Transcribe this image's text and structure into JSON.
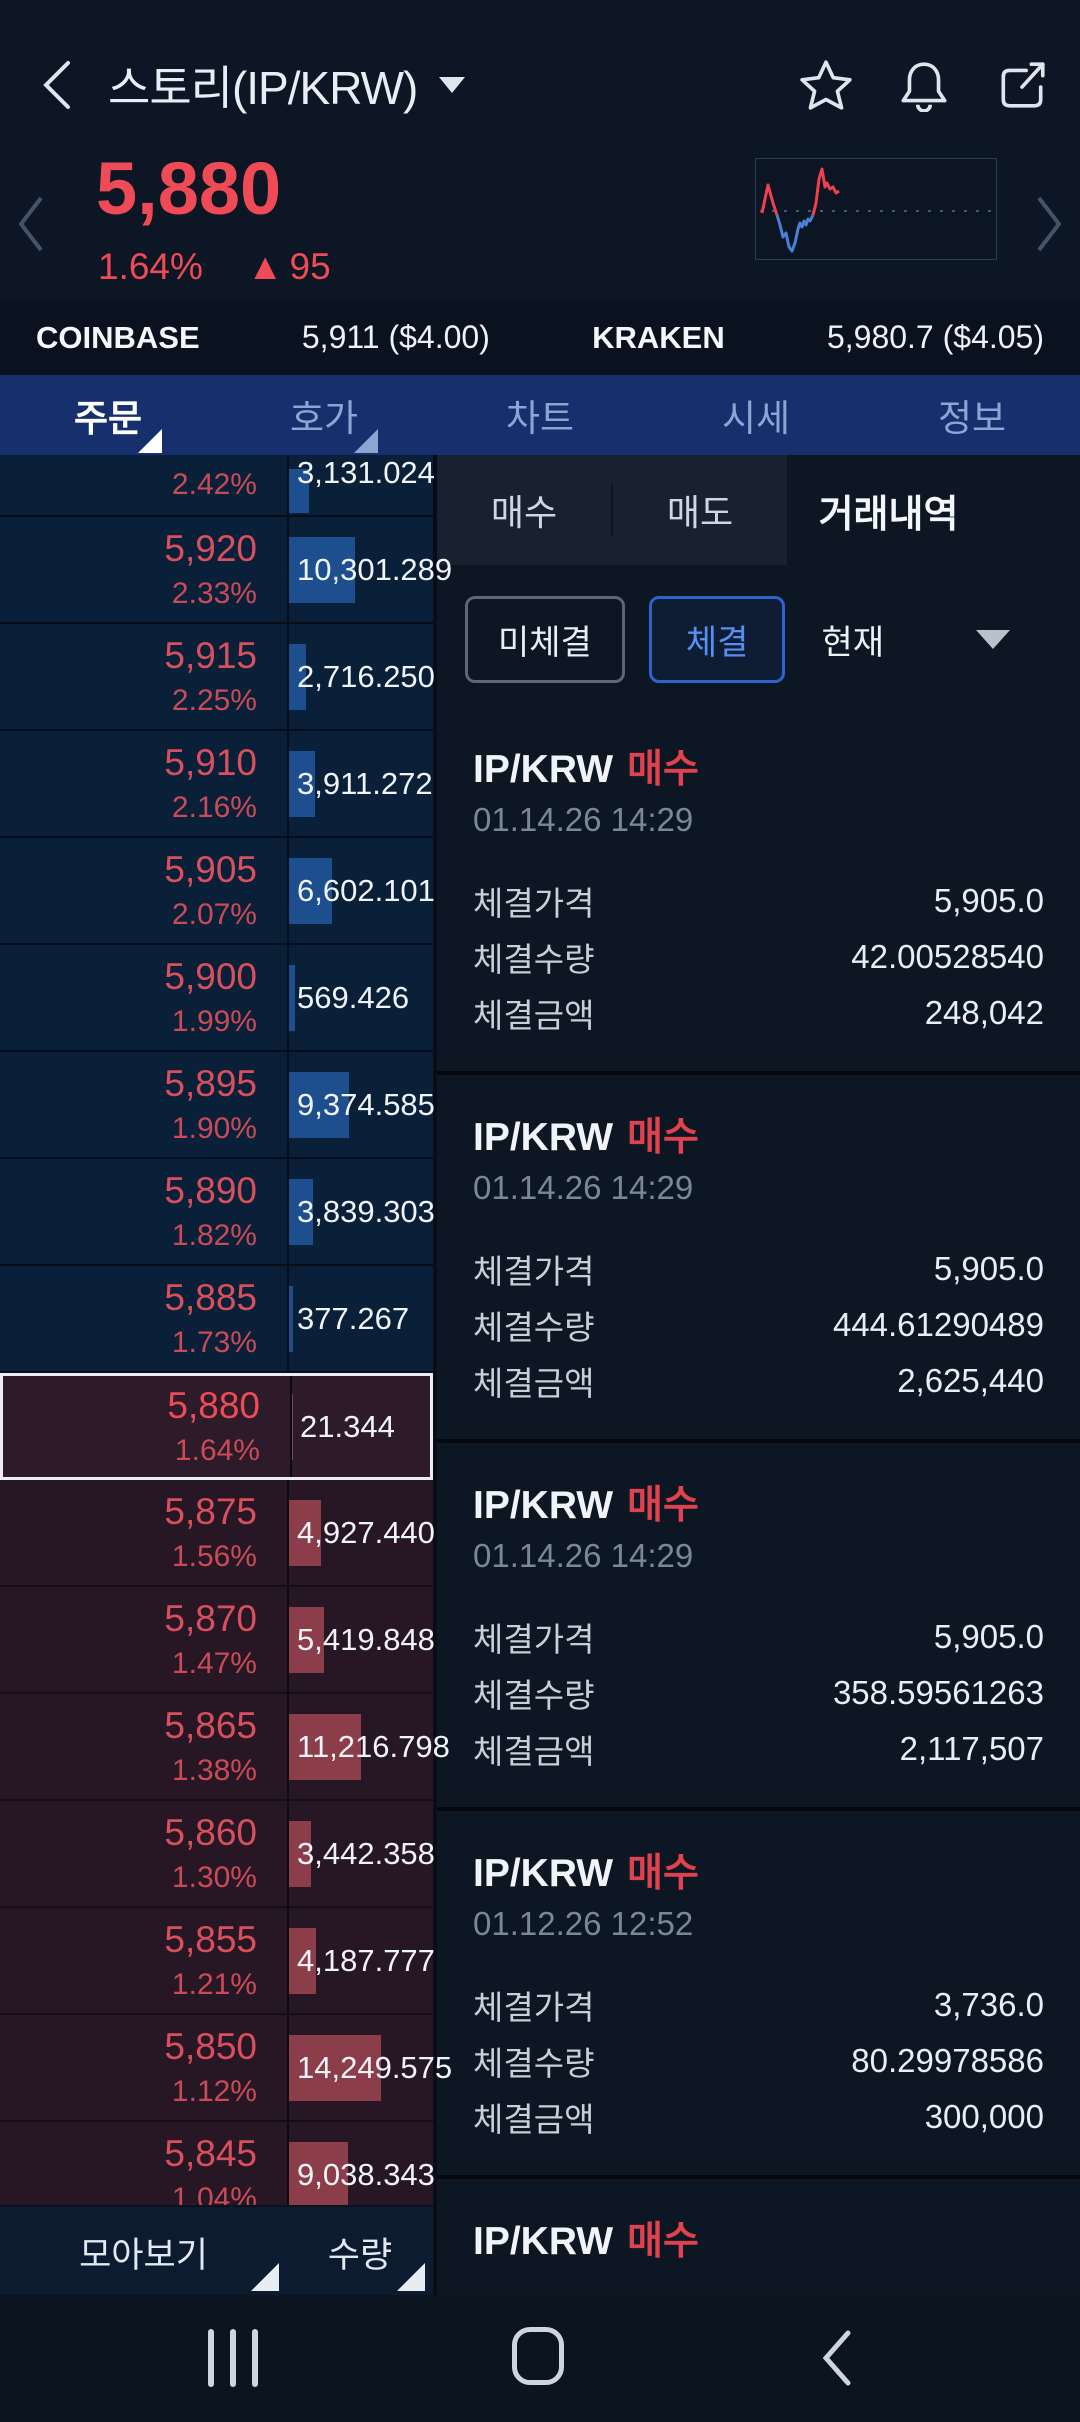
{
  "header": {
    "title": "스토리(IP/KRW)"
  },
  "price": {
    "value": "5,880",
    "change_pct": "1.64%",
    "change_dir": "▲",
    "change_abs": "95"
  },
  "ticker_compare": {
    "items": [
      {
        "exchange": "COINBASE",
        "price": "5,911 ($4.00)"
      },
      {
        "exchange": "KRAKEN",
        "price": "5,980.7 ($4.05)"
      }
    ]
  },
  "nav_tabs": {
    "items": [
      {
        "label": "주문"
      },
      {
        "label": "호가"
      },
      {
        "label": "차트"
      },
      {
        "label": "시세"
      },
      {
        "label": "정보"
      }
    ]
  },
  "orderbook": {
    "rows": [
      {
        "price": "",
        "pct": "2.42%",
        "volume": "3,131.024",
        "bar": 14,
        "side": "ask"
      },
      {
        "price": "5,920",
        "pct": "2.33%",
        "volume": "10,301.289",
        "bar": 46,
        "side": "ask"
      },
      {
        "price": "5,915",
        "pct": "2.25%",
        "volume": "2,716.250",
        "bar": 12,
        "side": "ask"
      },
      {
        "price": "5,910",
        "pct": "2.16%",
        "volume": "3,911.272",
        "bar": 18,
        "side": "ask"
      },
      {
        "price": "5,905",
        "pct": "2.07%",
        "volume": "6,602.101",
        "bar": 30,
        "side": "ask"
      },
      {
        "price": "5,900",
        "pct": "1.99%",
        "volume": "569.426",
        "bar": 4,
        "side": "ask"
      },
      {
        "price": "5,895",
        "pct": "1.90%",
        "volume": "9,374.585",
        "bar": 42,
        "side": "ask"
      },
      {
        "price": "5,890",
        "pct": "1.82%",
        "volume": "3,839.303",
        "bar": 17,
        "side": "ask"
      },
      {
        "price": "5,885",
        "pct": "1.73%",
        "volume": "377.267",
        "bar": 3,
        "side": "ask"
      },
      {
        "price": "5,880",
        "pct": "1.64%",
        "volume": "21.344",
        "bar": 1,
        "side": "bid",
        "selected": true
      },
      {
        "price": "5,875",
        "pct": "1.56%",
        "volume": "4,927.440",
        "bar": 22,
        "side": "bid"
      },
      {
        "price": "5,870",
        "pct": "1.47%",
        "volume": "5,419.848",
        "bar": 24,
        "side": "bid"
      },
      {
        "price": "5,865",
        "pct": "1.38%",
        "volume": "11,216.798",
        "bar": 50,
        "side": "bid"
      },
      {
        "price": "5,860",
        "pct": "1.30%",
        "volume": "3,442.358",
        "bar": 15,
        "side": "bid"
      },
      {
        "price": "5,855",
        "pct": "1.21%",
        "volume": "4,187.777",
        "bar": 19,
        "side": "bid"
      },
      {
        "price": "5,850",
        "pct": "1.12%",
        "volume": "14,249.575",
        "bar": 64,
        "side": "bid"
      },
      {
        "price": "5,845",
        "pct": "1.04%",
        "volume": "9,038.343",
        "bar": 41,
        "side": "bid"
      }
    ]
  },
  "panel": {
    "tabs": {
      "buy": "매수",
      "sell": "매도",
      "history": "거래내역"
    },
    "filters": {
      "unfilled": "미체결",
      "filled": "체결",
      "period": "현재"
    },
    "field_labels": {
      "price": "체결가격",
      "quantity": "체결수량",
      "amount": "체결금액"
    },
    "trades": [
      {
        "pair": "IP/KRW",
        "side": "매수",
        "datetime": "01.14.26 14:29",
        "price": "5,905.0",
        "quantity": "42.00528540",
        "amount": "248,042"
      },
      {
        "pair": "IP/KRW",
        "side": "매수",
        "datetime": "01.14.26 14:29",
        "price": "5,905.0",
        "quantity": "444.61290489",
        "amount": "2,625,440"
      },
      {
        "pair": "IP/KRW",
        "side": "매수",
        "datetime": "01.14.26 14:29",
        "price": "5,905.0",
        "quantity": "358.59561263",
        "amount": "2,117,507"
      },
      {
        "pair": "IP/KRW",
        "side": "매수",
        "datetime": "01.12.26 12:52",
        "price": "3,736.0",
        "quantity": "80.29978586",
        "amount": "300,000"
      },
      {
        "pair": "IP/KRW",
        "side": "매수"
      }
    ]
  },
  "footer": {
    "group_view": "모아보기",
    "quantity_mode": "수량"
  },
  "colors": {
    "accent_red": "#ee4b57",
    "accent_blue": "#5590f2",
    "tab_bar_blue": "#15306d",
    "ask_depth_bar": "#1d4e8d",
    "bid_depth_bar": "#8c3d4a"
  }
}
